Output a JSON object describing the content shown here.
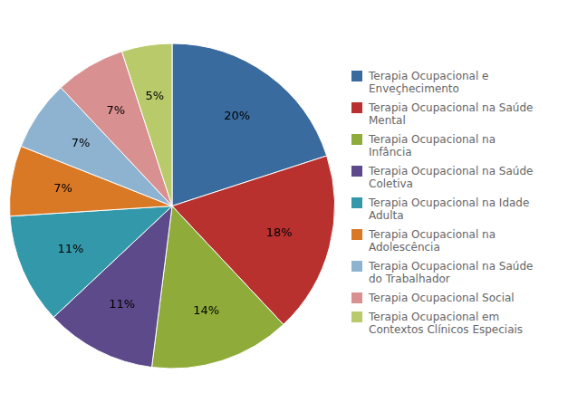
{
  "chart_data": {
    "type": "pie",
    "categories": [
      "Terapia Ocupacional e\nEnveçhecimento",
      "Terapia Ocupacional na Saúde\nMental",
      "Terapia Ocupacional na\nInfância",
      "Terapia Ocupacional na Saúde\nColetiva",
      "Terapia Ocupacional na Idade\nAdulta",
      "Terapia Ocupacional na\nAdolescência",
      "Terapia Ocupacional na Saúde\ndo Trabalhador",
      "Terapia Ocupacional Social",
      "Terapia Ocupacional em\nContextos Clínicos Especiais"
    ],
    "values": [
      20,
      18,
      14,
      11,
      11,
      7,
      7,
      7,
      5
    ],
    "value_labels": [
      "20%",
      "18%",
      "14%",
      "11%",
      "11%",
      "7%",
      "7%",
      "7%",
      "5%"
    ],
    "colors": [
      "#3a6b9e",
      "#b8312f",
      "#8fac3a",
      "#5c4a8a",
      "#3399aa",
      "#d97825",
      "#8eb3d0",
      "#d99090",
      "#b8ca6a"
    ],
    "data_labels": true,
    "legend": "right"
  }
}
